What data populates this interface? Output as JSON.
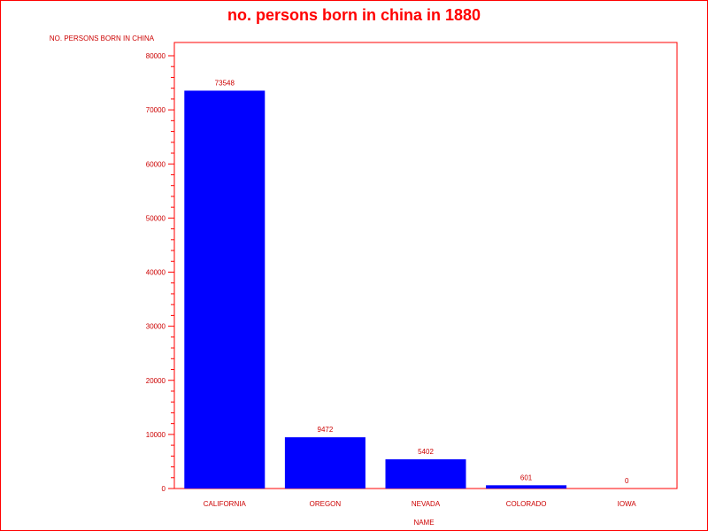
{
  "colors": {
    "text": "#cc0000",
    "title": "#ff0000",
    "axis": "#ff0000",
    "bar": "#0000ff",
    "background": "#ffffff"
  },
  "chart_data": {
    "type": "bar",
    "title": "no. persons born in china in 1880",
    "xlabel": "NAME",
    "ylabel": "NO. PERSONS BORN IN CHINA",
    "categories": [
      "CALIFORNIA",
      "OREGON",
      "NEVADA",
      "COLORADO",
      "IOWA"
    ],
    "values": [
      73548,
      9472,
      5402,
      601,
      0
    ],
    "value_labels": [
      "73548",
      "9472",
      "5402",
      "601",
      "0"
    ],
    "ylim": [
      0,
      80000
    ],
    "yticks": [
      0,
      10000,
      20000,
      30000,
      40000,
      50000,
      60000,
      70000,
      80000
    ],
    "ytick_labels": [
      "0",
      "10000",
      "20000",
      "30000",
      "40000",
      "50000",
      "60000",
      "70000",
      "80000"
    ],
    "grid": false,
    "legend": "none"
  }
}
